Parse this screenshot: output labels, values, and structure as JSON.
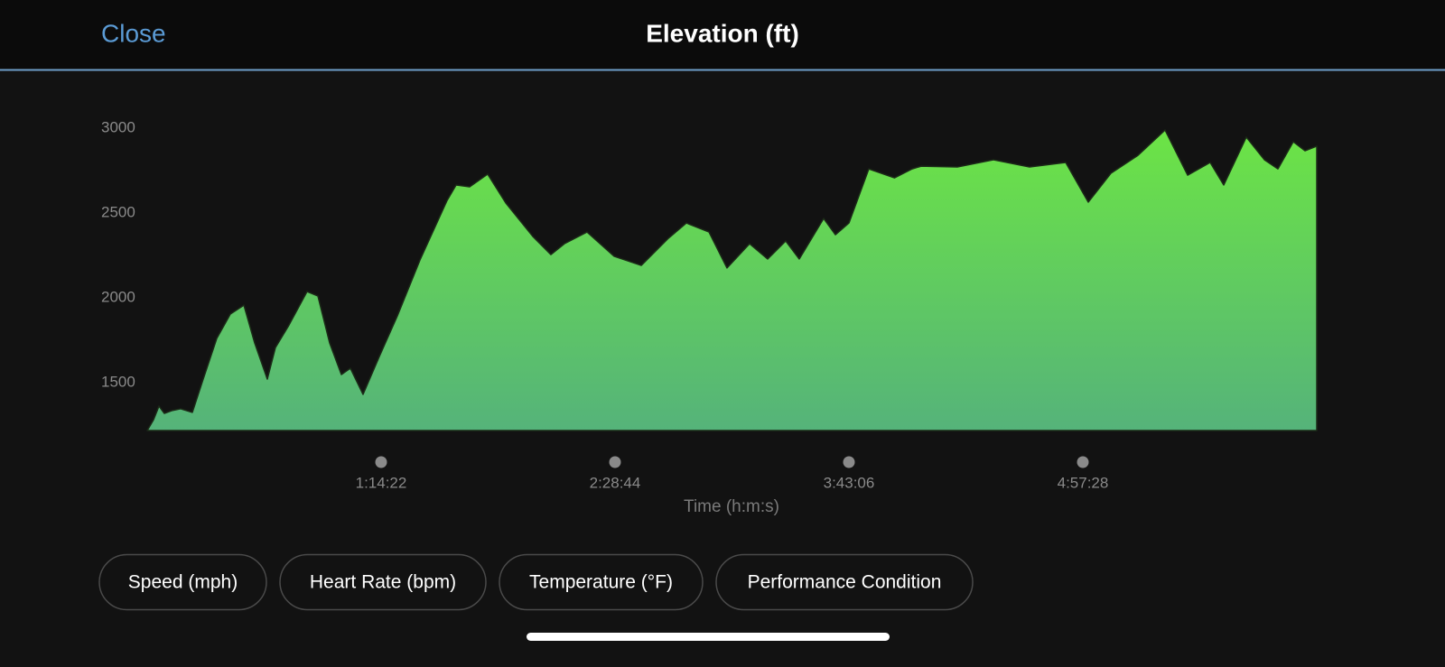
{
  "header": {
    "close": "Close"
  },
  "chart_data": {
    "type": "area",
    "title": "Elevation (ft)",
    "x_label": "Time (h:m:s)",
    "x": [
      0,
      121,
      224,
      327,
      465,
      637,
      861,
      1068,
      1327,
      1585,
      1844,
      2050,
      2291,
      2446,
      2705,
      3049,
      3256,
      3480,
      3704,
      3876,
      4117,
      4427,
      4772,
      5203,
      5720,
      5892,
      6150,
      6495,
      6840,
      7356,
      7701,
      7959,
      8390,
      8907,
      9424,
      9941,
      10285,
      10716,
      11060,
      11491,
      11835,
      12180,
      12438,
      12904,
      13128,
      13386,
      13765,
      14254,
      14592,
      14764,
      15453,
      16143,
      16832,
      17521,
      17952,
      18382,
      18899,
      19416,
      19847,
      20277,
      20536,
      20966,
      21311,
      21569,
      21862,
      22086,
      22310
    ],
    "values": [
      1218,
      1282,
      1362,
      1319,
      1335,
      1346,
      1325,
      1521,
      1761,
      1904,
      1957,
      1734,
      1521,
      1707,
      1840,
      2037,
      2011,
      1734,
      1548,
      1585,
      1431,
      1654,
      1894,
      2223,
      2574,
      2665,
      2654,
      2729,
      2559,
      2362,
      2255,
      2319,
      2388,
      2245,
      2191,
      2351,
      2441,
      2388,
      2176,
      2319,
      2229,
      2335,
      2229,
      2468,
      2372,
      2441,
      2760,
      2707,
      2760,
      2776,
      2771,
      2814,
      2771,
      2798,
      2564,
      2734,
      2840,
      2989,
      2723,
      2798,
      2665,
      2947,
      2814,
      2760,
      2920,
      2867,
      2894
    ],
    "gradient": [
      "#6ce445",
      "#55b37a"
    ],
    "xlim": [
      0,
      22310
    ],
    "xticks": [
      {
        "value": 4462,
        "label": "1:14:22"
      },
      {
        "value": 8924,
        "label": "2:28:44"
      },
      {
        "value": 13386,
        "label": "3:43:06"
      },
      {
        "value": 17848,
        "label": "4:57:28"
      }
    ],
    "ylim": [
      1218,
      3050
    ],
    "yticks": [
      1500,
      2000,
      2500,
      3000
    ],
    "grid": false
  },
  "buttons": [
    "Speed (mph)",
    "Heart Rate (bpm)",
    "Temperature (°F)",
    "Performance Condition"
  ]
}
